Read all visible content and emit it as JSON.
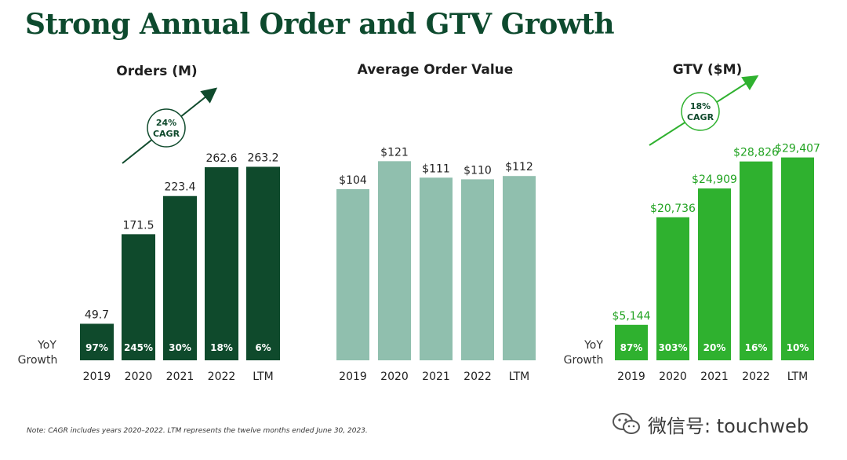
{
  "title": "Strong Annual Order and GTV Growth",
  "note": "Note: CAGR includes years 2020–2022. LTM represents the twelve months ended June 30, 2023.",
  "watermark": "微信号: touchweb",
  "yoy_label": [
    "YoY",
    "Growth"
  ],
  "colors": {
    "title": "#0d4a2e",
    "orders_bar": "#0f4a2c",
    "aov_bar": "#90bfae",
    "gtv_bar": "#2fb12f",
    "gtv_label": "#22a322"
  },
  "chart_data": [
    {
      "type": "bar",
      "title": "Orders (M)",
      "categories": [
        "2019",
        "2020",
        "2021",
        "2022",
        "LTM"
      ],
      "values": [
        49.7,
        171.5,
        223.4,
        262.6,
        263.2
      ],
      "value_labels": [
        "49.7",
        "171.5",
        "223.4",
        "262.6",
        "263.2"
      ],
      "yoy_growth": [
        "97%",
        "245%",
        "30%",
        "18%",
        "6%"
      ],
      "cagr": [
        "24%",
        "CAGR"
      ],
      "ylim": [
        0,
        300
      ],
      "xlabel": "",
      "ylabel": ""
    },
    {
      "type": "bar",
      "title": "Average Order Value",
      "categories": [
        "2019",
        "2020",
        "2021",
        "2022",
        "LTM"
      ],
      "values": [
        104,
        121,
        111,
        110,
        112
      ],
      "value_labels": [
        "$104",
        "$121",
        "$111",
        "$110",
        "$112"
      ],
      "ylim": [
        0,
        135
      ],
      "xlabel": "",
      "ylabel": ""
    },
    {
      "type": "bar",
      "title": "GTV ($M)",
      "categories": [
        "2019",
        "2020",
        "2021",
        "2022",
        "LTM"
      ],
      "values": [
        5144,
        20736,
        24909,
        28826,
        29407
      ],
      "value_labels": [
        "$5,144",
        "$20,736",
        "$24,909",
        "$28,826",
        "$29,407"
      ],
      "yoy_growth": [
        "87%",
        "303%",
        "20%",
        "16%",
        "10%"
      ],
      "cagr": [
        "18%",
        "CAGR"
      ],
      "ylim": [
        0,
        33000
      ],
      "xlabel": "",
      "ylabel": ""
    }
  ]
}
